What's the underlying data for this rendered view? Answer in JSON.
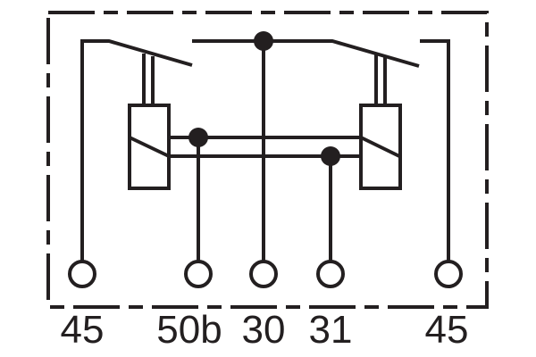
{
  "diagram": {
    "type": "relay-circuit-schematic",
    "line_color": "#231f20",
    "terminals": [
      {
        "label": "45"
      },
      {
        "label": "50b"
      },
      {
        "label": "30"
      },
      {
        "label": "31"
      },
      {
        "label": "45"
      }
    ]
  }
}
